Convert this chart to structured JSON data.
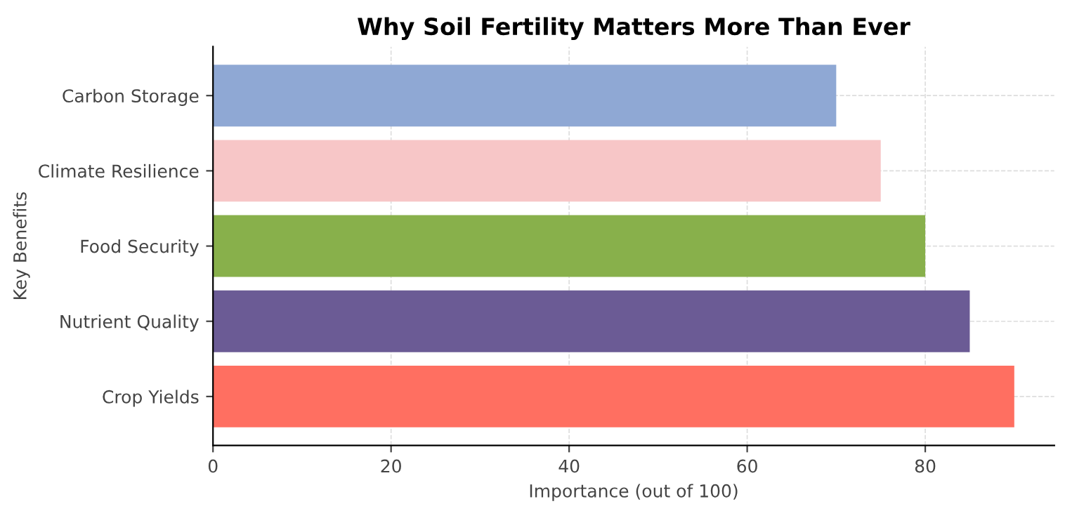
{
  "chart_data": {
    "type": "bar",
    "orientation": "horizontal",
    "title": "Why Soil Fertility Matters More Than Ever",
    "xlabel": "Importance (out of 100)",
    "ylabel": "Key Benefits",
    "categories": [
      "Carbon Storage",
      "Climate Resilience",
      "Food Security",
      "Nutrient Quality",
      "Crop Yields"
    ],
    "values": [
      70,
      75,
      80,
      85,
      90
    ],
    "colors": [
      "#8fa8d4",
      "#f7c6c7",
      "#88b04b",
      "#6b5b95",
      "#ff6f61"
    ],
    "xlim": [
      0,
      94.5
    ],
    "xticks": [
      0,
      20,
      40,
      60,
      80
    ],
    "grid": true
  }
}
